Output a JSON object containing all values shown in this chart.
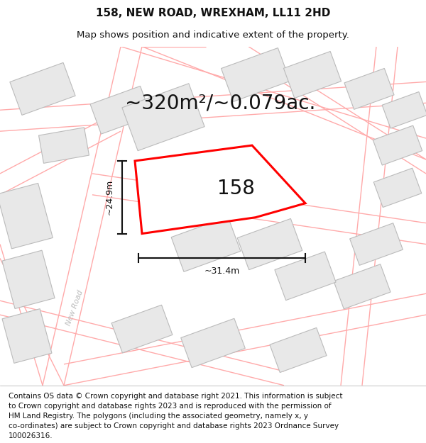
{
  "title_line1": "158, NEW ROAD, WREXHAM, LL11 2HD",
  "title_line2": "Map shows position and indicative extent of the property.",
  "area_text": "~320m²/~0.079ac.",
  "property_number": "158",
  "dim_width": "~31.4m",
  "dim_height": "~24.9m",
  "road_label": "New Road",
  "road_label2": "New Road",
  "footer_lines": [
    "Contains OS data © Crown copyright and database right 2021. This information is subject",
    "to Crown copyright and database rights 2023 and is reproduced with the permission of",
    "HM Land Registry. The polygons (including the associated geometry, namely x, y",
    "co-ordinates) are subject to Crown copyright and database rights 2023 Ordnance Survey",
    "100026316."
  ],
  "map_bg": "#ffffff",
  "property_fill": "#ffffff",
  "property_edge": "#ff0000",
  "building_fill": "#e8e8e8",
  "building_edge": "#cccccc",
  "road_color": "#ffaaaa",
  "road_outline_color": "#dddddd",
  "dim_line_color": "#111111",
  "title_fontsize": 11,
  "subtitle_fontsize": 9.5,
  "area_fontsize": 20,
  "number_fontsize": 20,
  "footer_fontsize": 7.5,
  "road_lw": 1.0,
  "prop_lw": 2.2
}
